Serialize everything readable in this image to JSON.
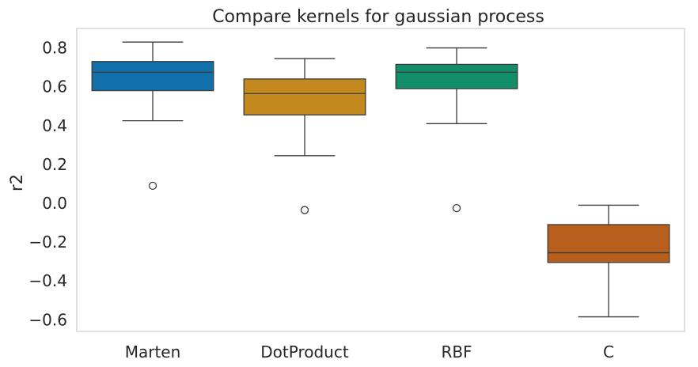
{
  "chart_data": {
    "type": "box",
    "title": "Compare kernels for gaussian process",
    "xlabel": "",
    "ylabel": "r2",
    "ylim": [
      -0.66,
      0.9
    ],
    "yticks": [
      0.8,
      0.6,
      0.4,
      0.2,
      0.0,
      -0.2,
      -0.4,
      -0.6
    ],
    "ytick_labels": [
      "0.8",
      "0.6",
      "0.4",
      "0.2",
      "0.0",
      "−0.2",
      "−0.4",
      "−0.6"
    ],
    "grid": false,
    "categories": [
      "Marten",
      "DotProduct",
      "RBF",
      "C"
    ],
    "boxes": [
      {
        "category": "Marten",
        "whisker_low": 0.425,
        "q1": 0.58,
        "median": 0.675,
        "q3": 0.73,
        "whisker_high": 0.83,
        "outliers": [
          0.09
        ],
        "color": "#1170aa"
      },
      {
        "category": "DotProduct",
        "whisker_low": 0.245,
        "q1": 0.455,
        "median": 0.565,
        "q3": 0.64,
        "whisker_high": 0.745,
        "outliers": [
          -0.035
        ],
        "color": "#c3891f"
      },
      {
        "category": "RBF",
        "whisker_low": 0.41,
        "q1": 0.59,
        "median": 0.675,
        "q3": 0.715,
        "whisker_high": 0.8,
        "outliers": [
          -0.025
        ],
        "color": "#128e6b"
      },
      {
        "category": "C",
        "whisker_low": -0.585,
        "q1": -0.305,
        "median": -0.255,
        "q3": -0.11,
        "whisker_high": -0.01,
        "outliers": [],
        "color": "#b95f1e"
      }
    ]
  }
}
